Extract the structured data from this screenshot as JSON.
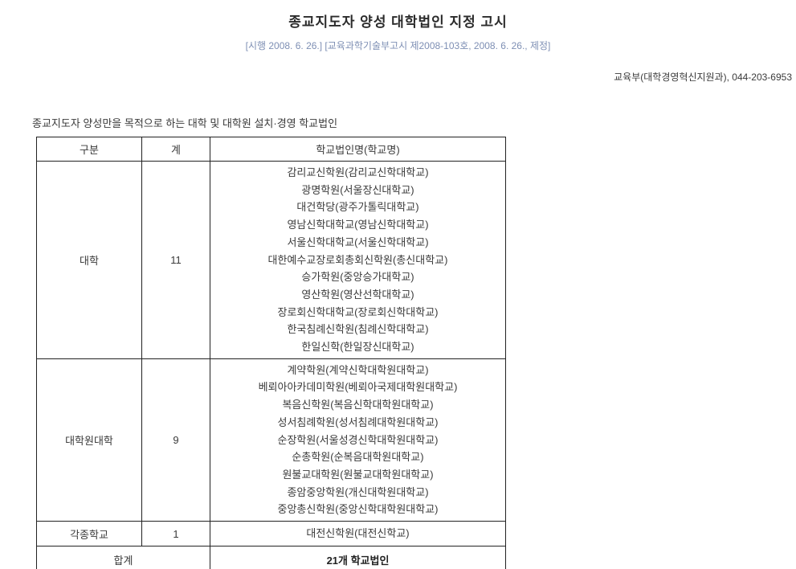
{
  "header": {
    "title": "종교지도자 양성 대학법인 지정 고시",
    "subtitle": "[시행 2008. 6. 26.] [교육과학기술부고시 제2008-103호, 2008. 6. 26., 제정]",
    "contact": "교육부(대학경영혁신지원과), 044-203-6953"
  },
  "intro": "종교지도자 양성만을 목적으로 하는 대학 및 대학원 설치·경영 학교법인",
  "table": {
    "columns": [
      "구분",
      "계",
      "학교법인명(학교명)"
    ],
    "rows": [
      {
        "category": "대학",
        "count": "11",
        "schools": [
          "감리교신학원(감리교신학대학교)",
          "광명학원(서울장신대학교)",
          "대건학당(광주가톨릭대학교)",
          "영남신학대학교(영남신학대학교)",
          "서울신학대학교(서울신학대학교)",
          "대한예수교장로회총회신학원(총신대학교)",
          "승가학원(중앙승가대학교)",
          "영산학원(영산선학대학교)",
          "장로회신학대학교(장로회신학대학교)",
          "한국침례신학원(침례신학대학교)",
          "한일신학(한일장신대학교)"
        ]
      },
      {
        "category": "대학원대학",
        "count": "9",
        "schools": [
          "계약학원(계약신학대학원대학교)",
          "베뢰아아카데미학원(베뢰아국제대학원대학교)",
          "복음신학원(복음신학대학원대학교)",
          "성서침례학원(성서침례대학원대학교)",
          "순장학원(서울성경신학대학원대학교)",
          "순총학원(순복음대학원대학교)",
          "원불교대학원(원불교대학원대학교)",
          "종암중앙학원(개신대학원대학교)",
          "중앙총신학원(중앙신학대학원대학교)"
        ]
      },
      {
        "category": "각종학교",
        "count": "1",
        "schools": [
          "대전신학원(대전신학교)"
        ]
      }
    ],
    "total": {
      "label": "합계",
      "value": "21개 학교법인"
    }
  },
  "colors": {
    "subtitle_text": "#7e8fb4",
    "body_text": "#3a3a3a",
    "border": "#222222",
    "background": "#ffffff"
  }
}
